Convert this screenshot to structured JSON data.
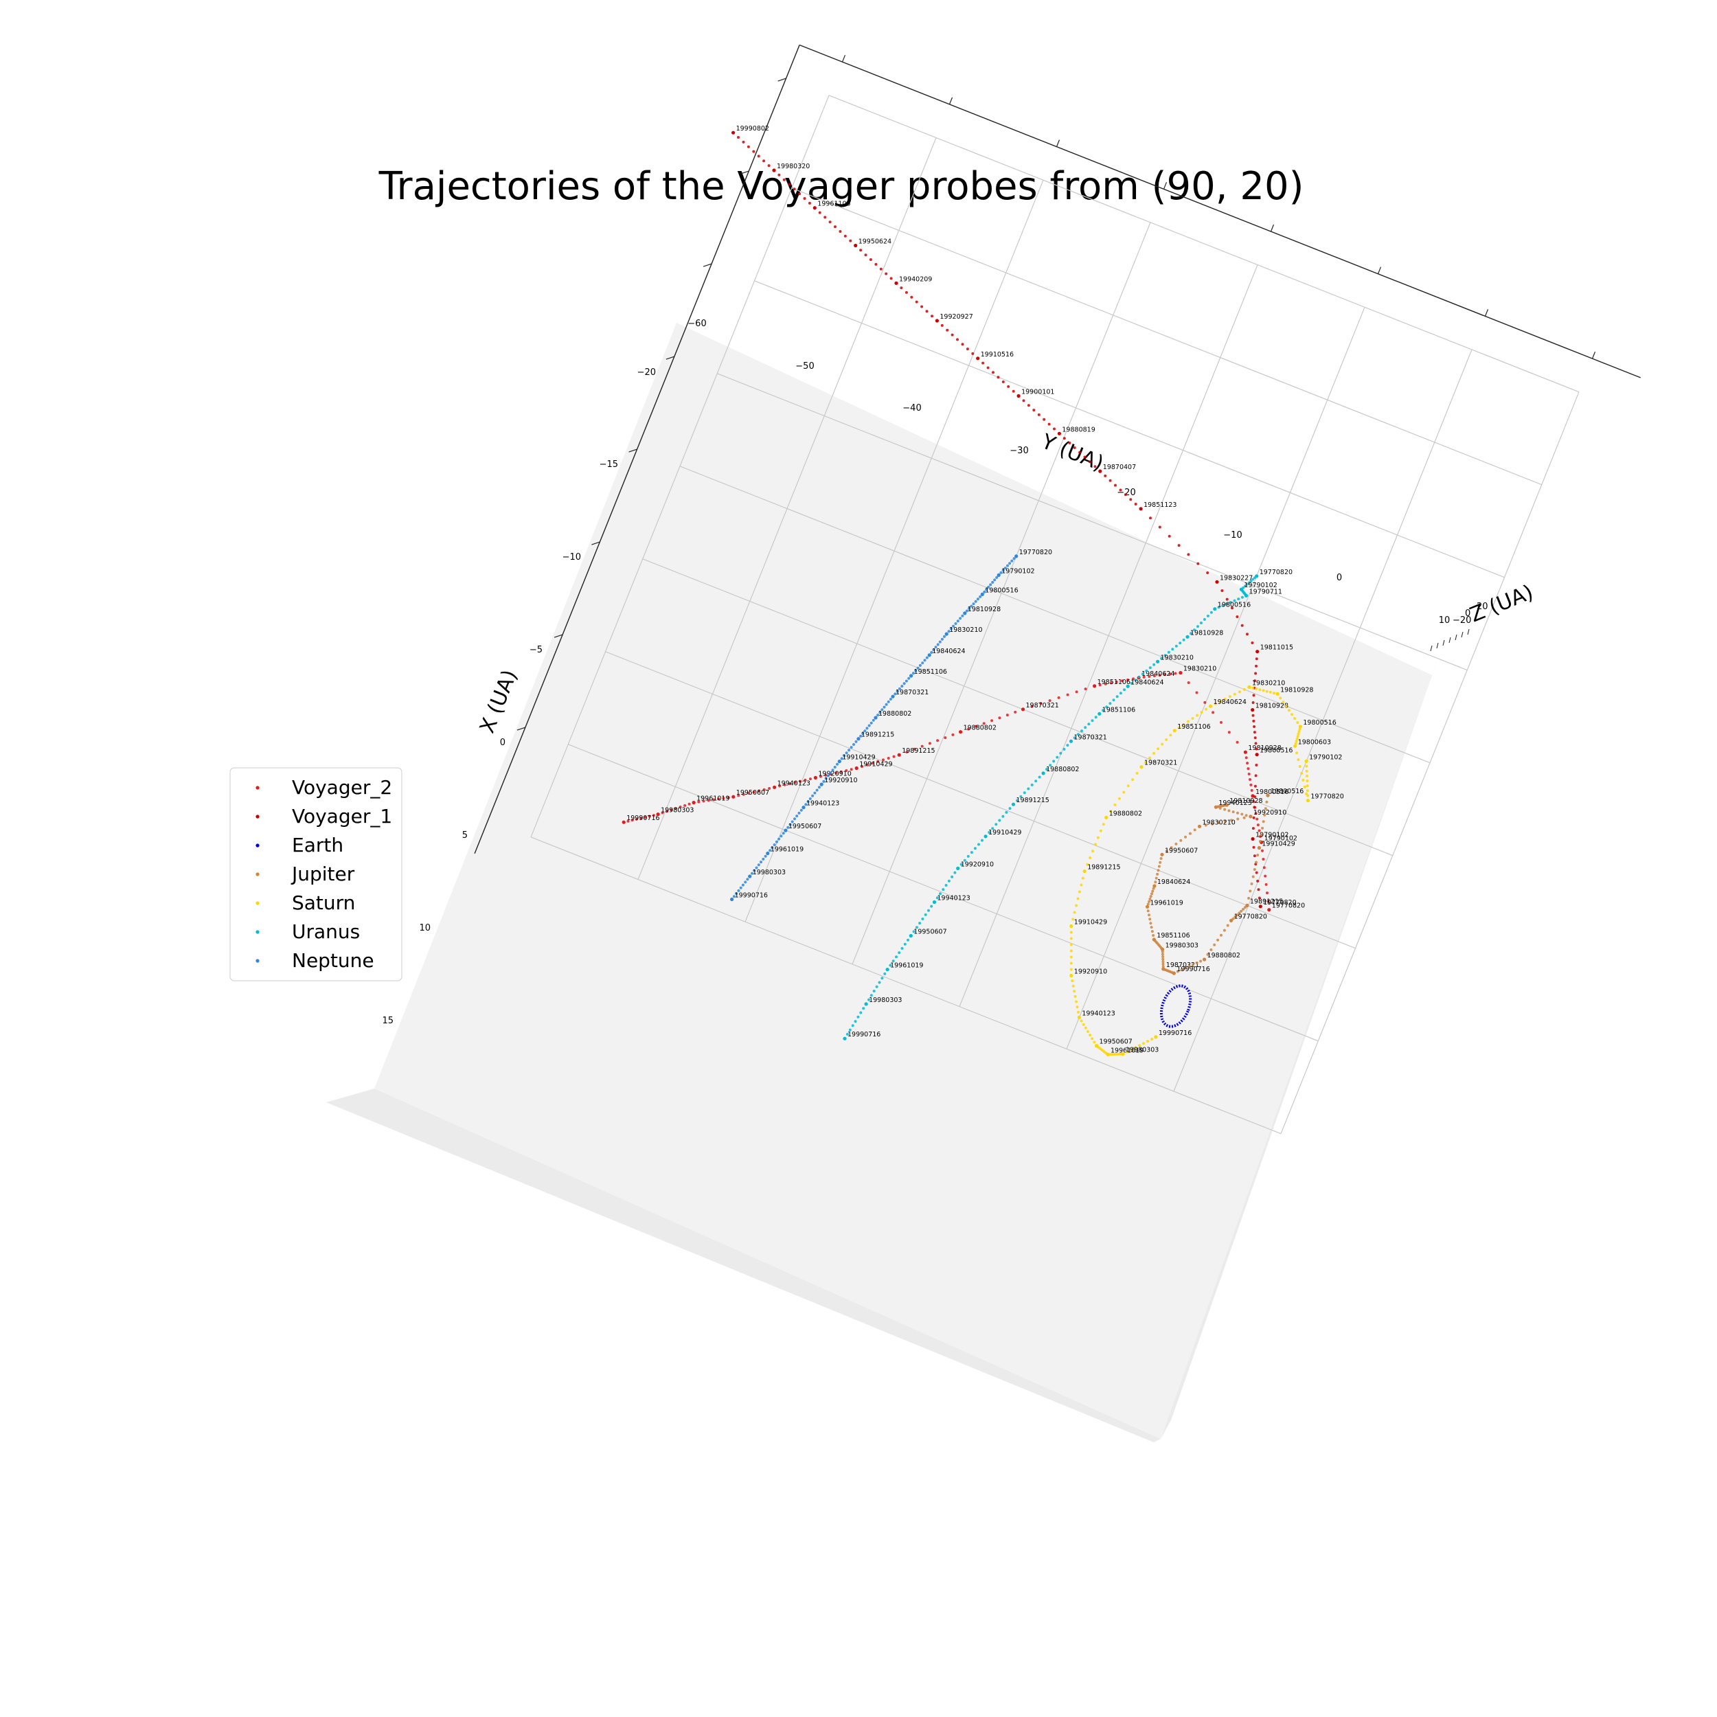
{
  "chart_data": {
    "type": "scatter",
    "title": "Trajectories of the Voyager probes from (90, 20)",
    "xlabel": "X (UA)",
    "ylabel": "Y (UA)",
    "zlabel": "Z (UA)",
    "view": {
      "elevation": 90,
      "azimuth": 20
    },
    "x_ticks": [
      "0",
      "5",
      "10",
      "15",
      "−20",
      "−15",
      "−10",
      "−5"
    ],
    "y_ticks": [
      "−60",
      "−50",
      "−40",
      "−30",
      "−20",
      "−10",
      "0",
      "10"
    ],
    "z_ticks": [
      "−20",
      "0",
      "20"
    ],
    "grid": true,
    "legend": {
      "position": "center-left",
      "entries": [
        {
          "label": "Voyager_2",
          "color": "#e41a1c"
        },
        {
          "label": "Voyager_1",
          "color": "#cc0000"
        },
        {
          "label": "Earth",
          "color": "#0000dd"
        },
        {
          "label": "Jupiter",
          "color": "#cd853f"
        },
        {
          "label": "Saturn",
          "color": "#ffd700"
        },
        {
          "label": "Uranus",
          "color": "#00bcd4"
        },
        {
          "label": "Neptune",
          "color": "#2e86de"
        }
      ]
    },
    "series": [
      {
        "name": "Voyager_2",
        "color": "#e41a1c",
        "points": [
          {
            "date": "19990716",
            "x": 17.6,
            "y": -53.0
          },
          {
            "date": "19980303",
            "x": 16.6,
            "y": -50.5
          },
          {
            "date": "19961019",
            "x": 15.4,
            "y": -48.0
          },
          {
            "date": "19950607",
            "x": 14.4,
            "y": -45.0
          },
          {
            "date": "19940123",
            "x": 13.2,
            "y": -42.0
          },
          {
            "date": "19920910",
            "x": 12.0,
            "y": -39.0
          },
          {
            "date": "19910429",
            "x": 10.8,
            "y": -36.0
          },
          {
            "date": "19891215",
            "x": 9.4,
            "y": -33.0
          },
          {
            "date": "19880802",
            "x": 7.2,
            "y": -28.8
          },
          {
            "date": "19870321",
            "x": 5.0,
            "y": -24.5
          },
          {
            "date": "19851106",
            "x": 2.6,
            "y": -19.5
          },
          {
            "date": "19840624",
            "x": 1.4,
            "y": -16.2
          },
          {
            "date": "19830210",
            "x": 0.4,
            "y": -13.0
          },
          {
            "date": "19810928",
            "x": 2.9,
            "y": -5.2
          },
          {
            "date": "19800516",
            "x": 4.8,
            "y": -3.2
          },
          {
            "date": "19790102",
            "x": 6.8,
            "y": -1.0
          },
          {
            "date": "19770820",
            "x": 9.8,
            "y": 1.8
          }
        ]
      },
      {
        "name": "Voyager_1",
        "color": "#cc0000",
        "points": [
          {
            "date": "19990802",
            "x": -16.5,
            "y": -66.5
          },
          {
            "date": "19980320",
            "x": -15.5,
            "y": -62.0
          },
          {
            "date": "19961105",
            "x": -14.5,
            "y": -57.5
          },
          {
            "date": "19950624",
            "x": -13.5,
            "y": -53.0
          },
          {
            "date": "19940209",
            "x": -12.5,
            "y": -48.5
          },
          {
            "date": "19920927",
            "x": -11.5,
            "y": -44.0
          },
          {
            "date": "19910516",
            "x": -10.5,
            "y": -39.5
          },
          {
            "date": "19900101",
            "x": -9.5,
            "y": -35.0
          },
          {
            "date": "19880819",
            "x": -8.5,
            "y": -30.5
          },
          {
            "date": "19870407",
            "x": -7.5,
            "y": -26.0
          },
          {
            "date": "19851123",
            "x": -6.5,
            "y": -21.5
          },
          {
            "date": "19830227",
            "x": -4.5,
            "y": -13.0
          },
          {
            "date": "19811015",
            "x": -2.0,
            "y": -7.5
          },
          {
            "date": "19810928",
            "x": 0.8,
            "y": -6.0
          },
          {
            "date": "19800516",
            "x": 2.8,
            "y": -4.2
          },
          {
            "date": "19790102",
            "x": 6.8,
            "y": -1.8
          },
          {
            "date": "19770820",
            "x": 9.8,
            "y": 1.0
          }
        ]
      },
      {
        "name": "Earth",
        "color": "#0000dd",
        "points": []
      },
      {
        "name": "Jupiter",
        "color": "#cd853f",
        "points": [
          {
            "date": "19810928",
            "x": 5.7,
            "y": -5.0
          },
          {
            "date": "19940123",
            "x": 6.0,
            "y": -5.8
          },
          {
            "date": "19920910",
            "x": 5.8,
            "y": -2.7
          },
          {
            "date": "19830210",
            "x": 7.2,
            "y": -6.5
          },
          {
            "date": "19950607",
            "x": 9.2,
            "y": -8.6
          },
          {
            "date": "19840624",
            "x": 10.8,
            "y": -8.2
          },
          {
            "date": "19961019",
            "x": 11.9,
            "y": -8.1
          },
          {
            "date": "19851106",
            "x": 13.3,
            "y": -6.5
          },
          {
            "date": "19980303",
            "x": 13.6,
            "y": -5.5
          },
          {
            "date": "19870321",
            "x": 14.5,
            "y": -4.8
          },
          {
            "date": "19990716",
            "x": 14.5,
            "y": -3.8
          },
          {
            "date": "19880802",
            "x": 13.3,
            "y": -1.8
          },
          {
            "date": "19770820",
            "x": 11.0,
            "y": -0.9
          },
          {
            "date": "19891215",
            "x": 10.0,
            "y": -0.1
          },
          {
            "date": "19910429",
            "x": 7.1,
            "y": -1.0
          },
          {
            "date": "19800516",
            "x": 4.5,
            "y": -2.0
          }
        ]
      },
      {
        "name": "Saturn",
        "color": "#ffd700",
        "points": [
          {
            "date": "19790102",
            "x": 2.2,
            "y": 0.0
          },
          {
            "date": "19770820",
            "x": 4.0,
            "y": 1.4
          },
          {
            "date": "19800603",
            "x": 1.7,
            "y": -1.4
          },
          {
            "date": "19800516",
            "x": 0.7,
            "y": -1.6
          },
          {
            "date": "19810928",
            "x": -0.4,
            "y": -4.5
          },
          {
            "date": "19830210",
            "x": -0.2,
            "y": -7.0
          },
          {
            "date": "19840624",
            "x": 1.4,
            "y": -9.5
          },
          {
            "date": "19851106",
            "x": 3.2,
            "y": -11.6
          },
          {
            "date": "19870321",
            "x": 5.5,
            "y": -13.1
          },
          {
            "date": "19880802",
            "x": 8.5,
            "y": -14.3
          },
          {
            "date": "19891215",
            "x": 11.4,
            "y": -14.3
          },
          {
            "date": "19910429",
            "x": 14.2,
            "y": -13.6
          },
          {
            "date": "19920910",
            "x": 16.5,
            "y": -12.0
          },
          {
            "date": "19940123",
            "x": 18.3,
            "y": -10.0
          },
          {
            "date": "19950607",
            "x": 19.3,
            "y": -7.7
          },
          {
            "date": "19961019",
            "x": 19.5,
            "y": -6.5
          },
          {
            "date": "19980303",
            "x": 19.2,
            "y": -5.3
          },
          {
            "date": "19990716",
            "x": 17.8,
            "y": -3.2
          }
        ]
      },
      {
        "name": "Uranus",
        "color": "#00bcd4",
        "points": [
          {
            "date": "19770820",
            "x": -5.5,
            "y": -10.0
          },
          {
            "date": "19790102",
            "x": -4.6,
            "y": -10.8
          },
          {
            "date": "19790711",
            "x": -4.4,
            "y": -10.2
          },
          {
            "date": "19800516",
            "x": -3.2,
            "y": -12.3
          },
          {
            "date": "19810928",
            "x": -1.4,
            "y": -13.6
          },
          {
            "date": "19830210",
            "x": 0.3,
            "y": -15.2
          },
          {
            "date": "19840624",
            "x": 2.0,
            "y": -16.8
          },
          {
            "date": "19851106",
            "x": 3.8,
            "y": -18.2
          },
          {
            "date": "19870321",
            "x": 5.6,
            "y": -19.6
          },
          {
            "date": "19880802",
            "x": 7.6,
            "y": -20.8
          },
          {
            "date": "19891215",
            "x": 9.6,
            "y": -22.2
          },
          {
            "date": "19910429",
            "x": 11.6,
            "y": -23.4
          },
          {
            "date": "19920910",
            "x": 13.6,
            "y": -24.6
          },
          {
            "date": "19940123",
            "x": 15.6,
            "y": -25.4
          },
          {
            "date": "19950607",
            "x": 17.6,
            "y": -26.2
          },
          {
            "date": "19961019",
            "x": 19.6,
            "y": -27.0
          },
          {
            "date": "19980303",
            "x": 21.6,
            "y": -27.6
          },
          {
            "date": "19990716",
            "x": 23.6,
            "y": -28.2
          }
        ]
      },
      {
        "name": "Neptune",
        "color": "#2e86de",
        "points": [
          {
            "date": "19770820",
            "x": -2.0,
            "y": -30.0
          },
          {
            "date": "19790102",
            "x": -0.8,
            "y": -30.8
          },
          {
            "date": "19800516",
            "x": 0.4,
            "y": -31.5
          },
          {
            "date": "19810928",
            "x": 1.6,
            "y": -32.3
          },
          {
            "date": "19830210",
            "x": 2.9,
            "y": -33.1
          },
          {
            "date": "19840624",
            "x": 4.2,
            "y": -33.8
          },
          {
            "date": "19851106",
            "x": 5.5,
            "y": -34.6
          },
          {
            "date": "19870321",
            "x": 6.8,
            "y": -35.4
          },
          {
            "date": "19880802",
            "x": 8.1,
            "y": -36.1
          },
          {
            "date": "19891215",
            "x": 9.4,
            "y": -36.8
          },
          {
            "date": "19910429",
            "x": 10.8,
            "y": -37.6
          },
          {
            "date": "19920910",
            "x": 12.2,
            "y": -38.3
          },
          {
            "date": "19940123",
            "x": 13.6,
            "y": -39.0
          },
          {
            "date": "19950607",
            "x": 15.0,
            "y": -39.7
          },
          {
            "date": "19961019",
            "x": 16.4,
            "y": -40.4
          },
          {
            "date": "19980303",
            "x": 17.8,
            "y": -41.1
          },
          {
            "date": "19990716",
            "x": 19.2,
            "y": -41.8
          }
        ]
      }
    ]
  }
}
